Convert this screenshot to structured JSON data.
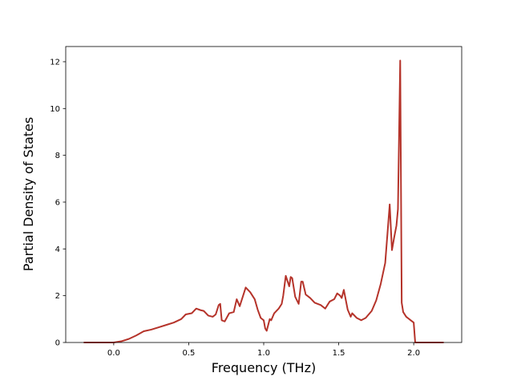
{
  "chart_data": {
    "type": "line",
    "x_label": "Frequency (THz)",
    "y_label": "Partial Density of States",
    "color": "#b5332a",
    "x": [
      -0.2,
      0.0,
      0.05,
      0.1,
      0.15,
      0.2,
      0.25,
      0.3,
      0.35,
      0.4,
      0.45,
      0.48,
      0.52,
      0.55,
      0.58,
      0.6,
      0.63,
      0.66,
      0.68,
      0.7,
      0.71,
      0.72,
      0.74,
      0.77,
      0.8,
      0.82,
      0.84,
      0.88,
      0.91,
      0.94,
      0.96,
      0.98,
      1.0,
      1.01,
      1.02,
      1.04,
      1.05,
      1.07,
      1.1,
      1.12,
      1.13,
      1.147,
      1.17,
      1.18,
      1.19,
      1.21,
      1.233,
      1.25,
      1.26,
      1.28,
      1.31,
      1.34,
      1.38,
      1.41,
      1.44,
      1.47,
      1.49,
      1.51,
      1.52,
      1.534,
      1.56,
      1.58,
      1.59,
      1.62,
      1.65,
      1.68,
      1.72,
      1.75,
      1.78,
      1.81,
      1.84,
      1.855,
      1.87,
      1.885,
      1.895,
      1.91,
      1.92,
      1.93,
      1.95,
      1.98,
      2.0,
      2.01,
      2.2
    ],
    "values": [
      0,
      0,
      0.05,
      0.15,
      0.3,
      0.48,
      0.55,
      0.65,
      0.75,
      0.85,
      1.0,
      1.2,
      1.25,
      1.45,
      1.38,
      1.35,
      1.15,
      1.1,
      1.2,
      1.6,
      1.65,
      0.95,
      0.9,
      1.25,
      1.3,
      1.85,
      1.55,
      2.35,
      2.15,
      1.85,
      1.4,
      1.05,
      0.95,
      0.6,
      0.5,
      1.0,
      0.95,
      1.25,
      1.45,
      1.65,
      2.0,
      2.85,
      2.4,
      2.8,
      2.75,
      1.95,
      1.65,
      2.6,
      2.6,
      2.05,
      1.9,
      1.7,
      1.6,
      1.45,
      1.75,
      1.85,
      2.1,
      2.0,
      1.9,
      2.25,
      1.4,
      1.1,
      1.25,
      1.05,
      0.95,
      1.05,
      1.35,
      1.8,
      2.5,
      3.4,
      5.9,
      3.95,
      4.5,
      5.0,
      5.7,
      12.05,
      1.7,
      1.3,
      1.1,
      0.95,
      0.85,
      0,
      0
    ],
    "xlim": [
      -0.32,
      2.32
    ],
    "ylim": [
      0,
      12.65
    ],
    "xticks": [
      {
        "value": 0.0,
        "label": "0.0"
      },
      0.5,
      {
        "value": 1.0,
        "label": "1.0"
      },
      1.5,
      {
        "value": 2.0,
        "label": "2.0"
      }
    ],
    "yticks": [
      0,
      2,
      4,
      6,
      8,
      10,
      12
    ]
  }
}
